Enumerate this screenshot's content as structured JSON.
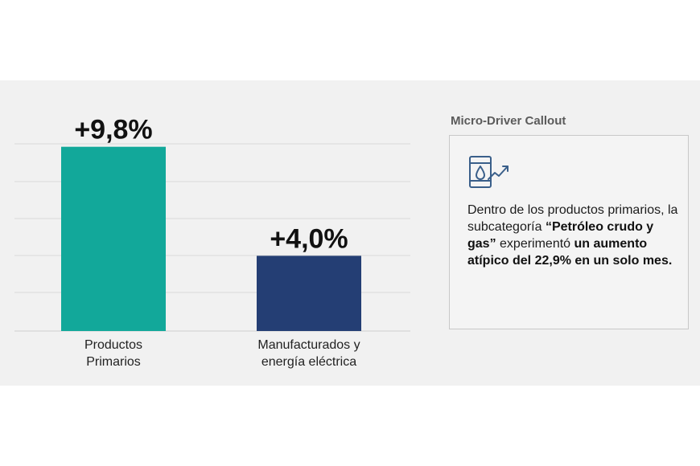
{
  "chart_data": {
    "type": "bar",
    "categories": [
      [
        "Productos",
        "Primarios"
      ],
      [
        "Manufacturados y",
        "energía eléctrica"
      ]
    ],
    "values": [
      9.8,
      4.0
    ],
    "value_labels": [
      "+9,8%",
      "+4,0%"
    ],
    "colors": [
      "#12a89a",
      "#243e74"
    ],
    "ylim": [
      0,
      10
    ],
    "grid": true,
    "title": "",
    "xlabel": "",
    "ylabel": ""
  },
  "callout": {
    "title": "Micro-Driver Callout",
    "icon": "oil-barrel-trend-icon",
    "text_1": "Dentro de los productos primarios, la subcategoría ",
    "text_bold_1": "“Petróleo crudo y gas”",
    "text_2": " experimentó ",
    "text_bold_2": "un aumento atípico del 22,9% en un solo mes."
  }
}
